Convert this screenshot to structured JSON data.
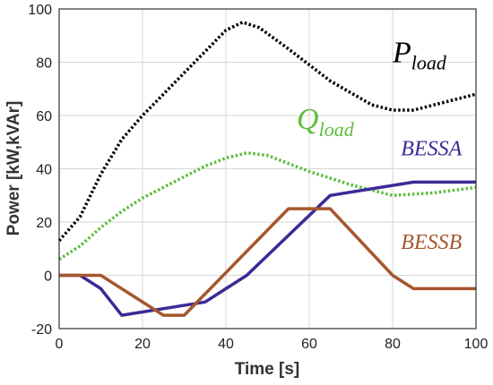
{
  "chart_data": {
    "type": "line",
    "xlabel": "Time [s]",
    "ylabel": "Power [kW,kVAr]",
    "xlim": [
      0,
      100
    ],
    "ylim": [
      -20,
      100
    ],
    "x_ticks": [
      0,
      20,
      40,
      60,
      80,
      100
    ],
    "y_ticks": [
      -20,
      0,
      20,
      40,
      60,
      80,
      100
    ],
    "grid": true,
    "series": [
      {
        "key": "pload",
        "color": "#000000",
        "style": "dotted",
        "x": [
          0,
          5,
          10,
          15,
          20,
          25,
          30,
          35,
          40,
          44,
          48,
          55,
          65,
          75,
          80,
          85,
          90,
          95,
          100
        ],
        "y": [
          13,
          22,
          38,
          51,
          60,
          68,
          76,
          84,
          92,
          95,
          93,
          85,
          73,
          64,
          62,
          62,
          64,
          66,
          68
        ]
      },
      {
        "key": "qload",
        "color": "#5cbe3d",
        "style": "dotted",
        "x": [
          0,
          5,
          10,
          15,
          20,
          25,
          30,
          35,
          40,
          45,
          50,
          60,
          70,
          80,
          90,
          100
        ],
        "y": [
          6,
          11,
          18,
          24,
          29,
          33,
          37,
          41,
          44,
          46,
          45,
          39,
          34,
          30,
          31,
          33
        ]
      },
      {
        "key": "bessa",
        "color": "#3c2a96",
        "style": "solid",
        "x": [
          0,
          5,
          10,
          15,
          35,
          45,
          65,
          85,
          100
        ],
        "y": [
          0,
          0,
          -5,
          -15,
          -10,
          0,
          30,
          35,
          35
        ]
      },
      {
        "key": "bessb",
        "color": "#a5572e",
        "style": "solid",
        "x": [
          0,
          10,
          25,
          30,
          55,
          65,
          80,
          85,
          100
        ],
        "y": [
          0,
          0,
          -15,
          -15,
          25,
          25,
          0,
          -5,
          -5
        ]
      }
    ],
    "annotations": [
      {
        "key": "pload_label",
        "base": "P",
        "sub": "load",
        "color": "#000000",
        "x": 80,
        "y": 80
      },
      {
        "key": "qload_label",
        "base": "Q",
        "sub": "load",
        "color": "#5cbe3d",
        "x": 57,
        "y": 55
      },
      {
        "key": "bessa_label",
        "text": "BESSA",
        "color": "#3c2a96",
        "x": 82,
        "y": 45
      },
      {
        "key": "bessb_label",
        "text": "BESSB",
        "color": "#a5572e",
        "x": 82,
        "y": 10
      }
    ]
  }
}
